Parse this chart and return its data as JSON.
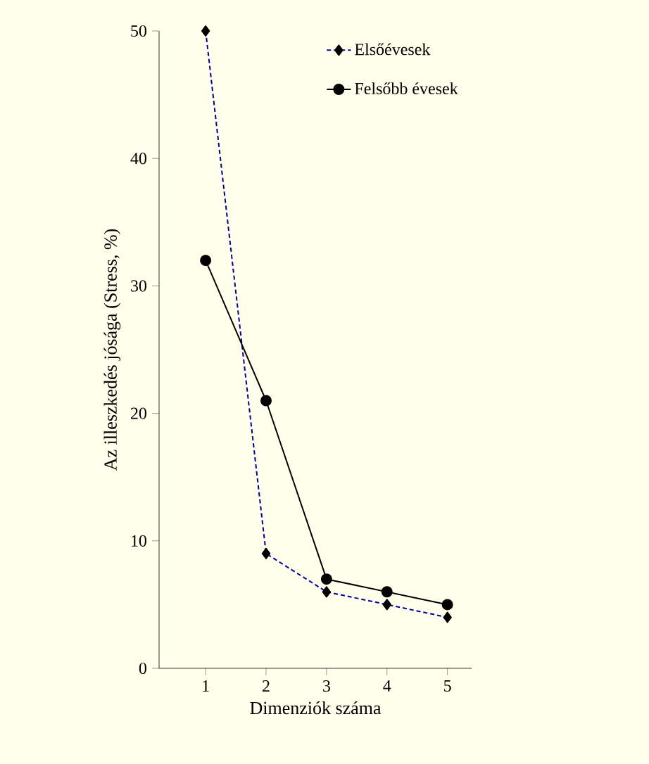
{
  "chart_data": {
    "type": "line",
    "ylabel": "Az illeszkedés jósága (Stress, %)",
    "xlabel": "Dimenziók száma",
    "categories": [
      "1",
      "2",
      "3",
      "4",
      "5"
    ],
    "ylim": [
      0,
      50
    ],
    "yticks": [
      0,
      10,
      20,
      30,
      40,
      50
    ],
    "legend": "top right",
    "grid": false,
    "series": [
      {
        "name": "Elsőévesek",
        "color": "#000099",
        "values": [
          50,
          9,
          6,
          5,
          4
        ],
        "marker": "diamond",
        "line_style": "dotted"
      },
      {
        "name": "Felsőbb évesek",
        "color": "#000000",
        "values": [
          32,
          21,
          7,
          6,
          5
        ],
        "marker": "circle",
        "line_style": "solid"
      }
    ]
  }
}
